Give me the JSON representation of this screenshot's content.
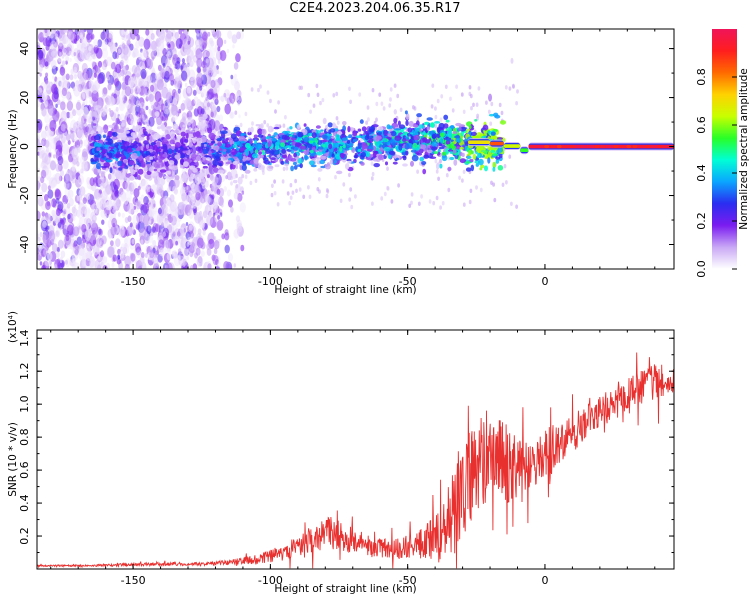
{
  "title": "C2E4.2023.204.06.35.R17",
  "chart_data": [
    {
      "type": "heatmap",
      "xlabel": "Height of straight line (km)",
      "ylabel": "Frequency (Hz)",
      "xlim": [
        -185,
        47
      ],
      "ylim": [
        -50,
        48
      ],
      "xticks": [
        -150,
        -100,
        -50,
        0
      ],
      "yticks": [
        -40,
        -20,
        0,
        20,
        40
      ],
      "colorbar": {
        "label": "Normalized spectral amplitude",
        "range": [
          0,
          1
        ],
        "ticks": [
          0.0,
          0.2,
          0.4,
          0.6,
          0.8
        ],
        "colormap": [
          "#ffffff",
          "#c9a8f5",
          "#7b1cf0",
          "#2a2df0",
          "#0aa6ff",
          "#00ffd5",
          "#28ff28",
          "#c8ff00",
          "#ffd200",
          "#ff6a00",
          "#ff1e1e",
          "#f0145a"
        ]
      },
      "ridge": [
        {
          "x": -160,
          "y": -2,
          "amp": 0.35
        },
        {
          "x": -130,
          "y": -2,
          "amp": 0.25
        },
        {
          "x": -110,
          "y": -1,
          "amp": 0.4
        },
        {
          "x": -90,
          "y": 1,
          "amp": 0.45
        },
        {
          "x": -70,
          "y": 0,
          "amp": 0.4
        },
        {
          "x": -50,
          "y": 3,
          "amp": 0.45
        },
        {
          "x": -30,
          "y": 2,
          "amp": 0.55
        },
        {
          "x": -22,
          "y": 1,
          "amp": 0.85
        },
        {
          "x": -15,
          "y": 0,
          "amp": 0.7
        },
        {
          "x": -8,
          "y": -1,
          "amp": 0.6
        },
        {
          "x": 0,
          "y": 0,
          "amp": 0.95
        },
        {
          "x": 20,
          "y": 0,
          "amp": 0.95
        },
        {
          "x": 45,
          "y": 0,
          "amp": 0.95
        }
      ],
      "notes": "narrow strong carrier near 0 Hz from about -8 km upward; broad noisy spread below -120 km"
    },
    {
      "type": "line",
      "xlabel": "Height of straight line (km)",
      "ylabel": "SNR (10 * v/v)",
      "yscale_label": "(x10⁴)",
      "xlim": [
        -185,
        47
      ],
      "ylim": [
        0,
        1.45
      ],
      "xticks": [
        -150,
        -100,
        -50,
        0
      ],
      "yticks": [
        0.2,
        0.4,
        0.6,
        0.8,
        1.0,
        1.2,
        1.4
      ],
      "color": "#e8302f",
      "x": [
        -185,
        -170,
        -155,
        -140,
        -125,
        -115,
        -105,
        -95,
        -85,
        -78,
        -70,
        -62,
        -55,
        -48,
        -42,
        -37,
        -32,
        -28,
        -24,
        -20,
        -16,
        -12,
        -8,
        -4,
        0,
        5,
        10,
        15,
        20,
        25,
        30,
        35,
        40,
        44,
        47
      ],
      "y": [
        0.02,
        0.02,
        0.025,
        0.03,
        0.03,
        0.04,
        0.06,
        0.1,
        0.18,
        0.22,
        0.17,
        0.13,
        0.12,
        0.14,
        0.18,
        0.25,
        0.4,
        0.55,
        0.65,
        0.7,
        0.66,
        0.62,
        0.6,
        0.62,
        0.7,
        0.75,
        0.82,
        0.9,
        0.96,
        1.0,
        1.06,
        1.1,
        1.13,
        1.12,
        1.12
      ],
      "spread": [
        0.005,
        0.005,
        0.008,
        0.01,
        0.01,
        0.015,
        0.03,
        0.05,
        0.08,
        0.1,
        0.08,
        0.06,
        0.06,
        0.08,
        0.12,
        0.18,
        0.3,
        0.3,
        0.3,
        0.28,
        0.25,
        0.22,
        0.2,
        0.18,
        0.16,
        0.14,
        0.12,
        0.1,
        0.1,
        0.1,
        0.1,
        0.1,
        0.12,
        0.08,
        0.05
      ]
    }
  ]
}
